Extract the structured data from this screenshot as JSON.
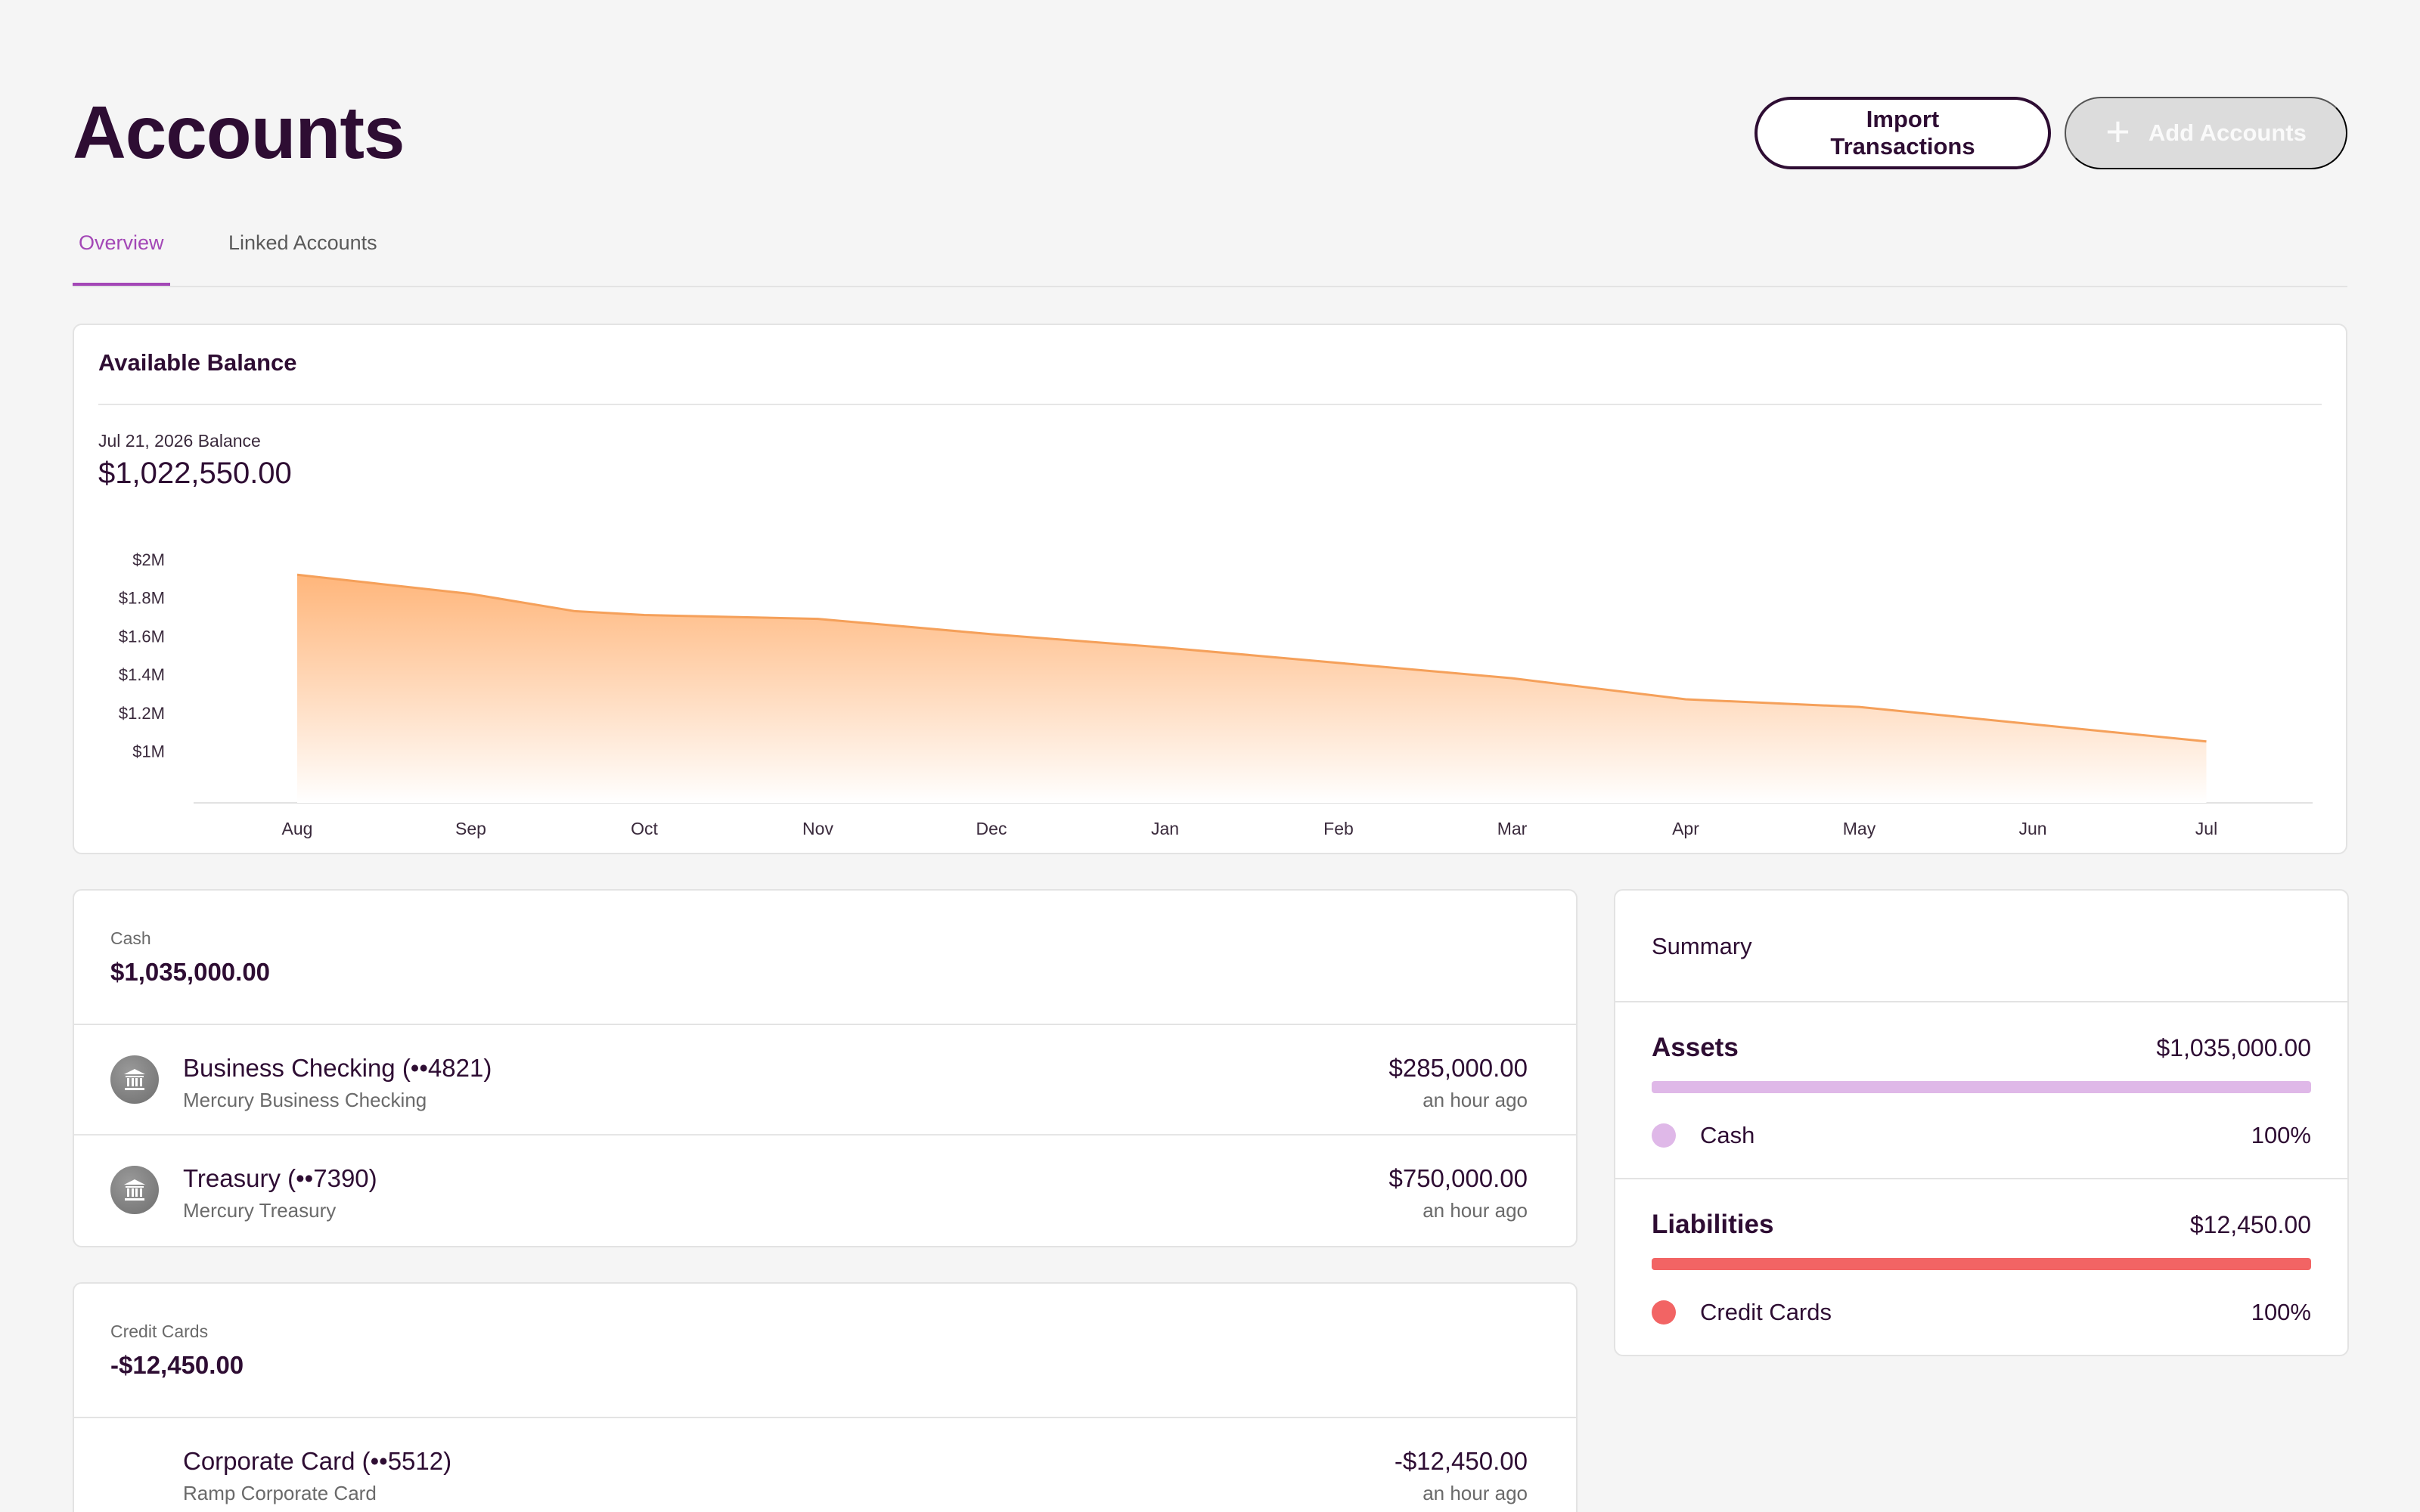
{
  "page": {
    "title": "Accounts",
    "actions": {
      "import_label": "Import Transactions",
      "add_label": "Add Accounts"
    },
    "tabs": [
      {
        "label": "Overview",
        "active": true
      },
      {
        "label": "Linked Accounts",
        "active": false
      }
    ]
  },
  "balance": {
    "title": "Available Balance",
    "date_label": "Jul 21, 2026 Balance",
    "amount": "$1,022,550.00"
  },
  "chart_data": {
    "type": "area",
    "title": "",
    "xlabel": "",
    "ylabel": "",
    "categories": [
      "Aug",
      "Sep",
      "Oct",
      "Nov",
      "Dec",
      "Jan",
      "Feb",
      "Mar",
      "Apr",
      "May",
      "Jun",
      "Jul"
    ],
    "x": [
      0,
      0.4,
      1,
      1.6,
      2,
      3,
      4,
      5,
      6,
      7,
      8,
      9,
      10,
      11
    ],
    "values": [
      1.92,
      1.88,
      1.82,
      1.73,
      1.71,
      1.69,
      1.61,
      1.54,
      1.46,
      1.38,
      1.27,
      1.23,
      1.14,
      1.05
    ],
    "y_ticks": [
      {
        "value": 1.0,
        "label": "$1M"
      },
      {
        "value": 1.2,
        "label": "$1.2M"
      },
      {
        "value": 1.4,
        "label": "$1.4M"
      },
      {
        "value": 1.6,
        "label": "$1.6M"
      },
      {
        "value": 1.8,
        "label": "$1.8M"
      },
      {
        "value": 2.0,
        "label": "$2M"
      }
    ],
    "ylim": [
      0.84,
      2.0
    ],
    "grid": false,
    "color": "#f5a05a"
  },
  "cash": {
    "label": "Cash",
    "total": "$1,035,000.00",
    "accounts": [
      {
        "name": "Business Checking (••4821)",
        "sub": "Mercury Business Checking",
        "amount": "$285,000.00",
        "time": "an hour ago",
        "icon": "bank-icon"
      },
      {
        "name": "Treasury (••7390)",
        "sub": "Mercury Treasury",
        "amount": "$750,000.00",
        "time": "an hour ago",
        "icon": "bank-icon"
      }
    ]
  },
  "credit": {
    "label": "Credit Cards",
    "total": "-$12,450.00",
    "accounts": [
      {
        "name": "Corporate Card (••5512)",
        "sub": "Ramp Corporate Card",
        "amount": "-$12,450.00",
        "time": "an hour ago"
      }
    ]
  },
  "summary": {
    "title": "Summary",
    "assets": {
      "heading": "Assets",
      "total": "$1,035,000.00",
      "item": "Cash",
      "pct": "100%",
      "share": 1.0,
      "color": "#dfb8e8"
    },
    "liabilities": {
      "heading": "Liabilities",
      "total": "$12,450.00",
      "item": "Credit Cards",
      "pct": "100%",
      "share": 1.0,
      "color": "#f26464"
    }
  }
}
